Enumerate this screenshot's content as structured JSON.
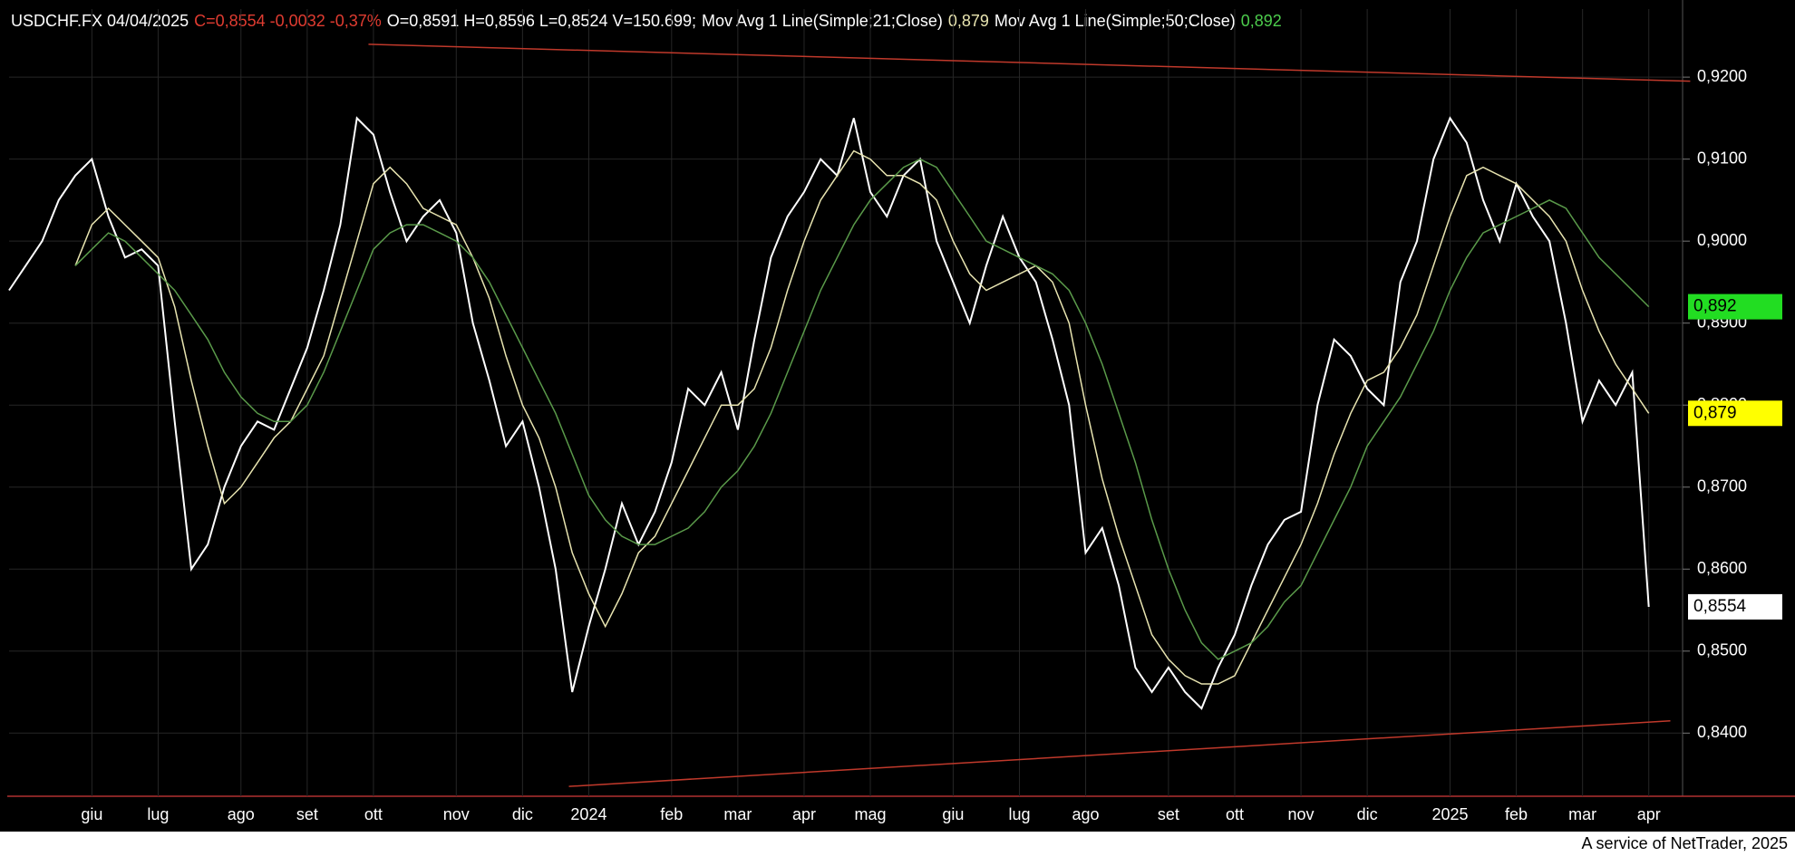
{
  "chart_data": {
    "type": "line",
    "quote": [
      {
        "text": "C=0,8554 -0,0032 -0,37%",
        "color": "#e03c31"
      },
      {
        "text": "O=0,8591 H=0,8596 L=0,8524 V=150.699;",
        "color": "#ffffff"
      }
    ],
    "footer": "A service of NetTrader, 2025",
    "categories": [
      null,
      null,
      null,
      null,
      null,
      "giu",
      null,
      null,
      null,
      "lug",
      null,
      null,
      null,
      null,
      "ago",
      null,
      null,
      null,
      "set",
      null,
      null,
      null,
      "ott",
      null,
      null,
      null,
      null,
      "nov",
      null,
      null,
      null,
      "dic",
      null,
      null,
      null,
      "2024",
      null,
      null,
      null,
      null,
      "feb",
      null,
      null,
      null,
      "mar",
      null,
      null,
      null,
      "apr",
      null,
      null,
      null,
      "mag",
      null,
      null,
      null,
      null,
      "giu",
      null,
      null,
      null,
      "lug",
      null,
      null,
      null,
      "ago",
      null,
      null,
      null,
      null,
      "set",
      null,
      null,
      null,
      "ott",
      null,
      null,
      null,
      "nov",
      null,
      null,
      null,
      "dic",
      null,
      null,
      null,
      null,
      "2025",
      null,
      null,
      null,
      "feb",
      null,
      null,
      null,
      "mar",
      null,
      null,
      null,
      "apr"
    ],
    "series": [
      {
        "name": "USDCHF.FX 04/04/2025",
        "color": "#ffffff",
        "label_color": "#ffffff",
        "last_label": "0,8554",
        "values": [
          0.894,
          0.897,
          0.9,
          0.905,
          0.908,
          0.91,
          0.903,
          0.898,
          0.899,
          0.897,
          0.878,
          0.86,
          0.863,
          0.87,
          0.875,
          0.878,
          0.877,
          0.882,
          0.887,
          0.894,
          0.902,
          0.915,
          0.913,
          0.906,
          0.9,
          0.903,
          0.905,
          0.901,
          0.89,
          0.883,
          0.875,
          0.878,
          0.87,
          0.86,
          0.845,
          0.853,
          0.86,
          0.868,
          0.863,
          0.867,
          0.873,
          0.882,
          0.88,
          0.884,
          0.877,
          0.888,
          0.898,
          0.903,
          0.906,
          0.91,
          0.908,
          0.915,
          0.906,
          0.903,
          0.908,
          0.91,
          0.9,
          0.895,
          0.89,
          0.897,
          0.903,
          0.898,
          0.895,
          0.888,
          0.88,
          0.862,
          0.865,
          0.858,
          0.848,
          0.845,
          0.848,
          0.845,
          0.843,
          0.848,
          0.852,
          0.858,
          0.863,
          0.866,
          0.867,
          0.88,
          0.888,
          0.886,
          0.882,
          0.88,
          0.895,
          0.9,
          0.91,
          0.915,
          0.912,
          0.905,
          0.9,
          0.907,
          0.903,
          0.9,
          0.89,
          0.878,
          0.883,
          0.88,
          0.884,
          0.8554
        ]
      },
      {
        "name": "Mov Avg 1 Line(Simple;21;Close)",
        "color": "#e8e4b0",
        "label_color": "#ffff00",
        "last_label": "0,879",
        "values": [
          null,
          null,
          null,
          null,
          0.897,
          0.902,
          0.904,
          0.902,
          0.9,
          0.898,
          0.892,
          0.883,
          0.875,
          0.868,
          0.87,
          0.873,
          0.876,
          0.878,
          0.882,
          0.886,
          0.893,
          0.9,
          0.907,
          0.909,
          0.907,
          0.904,
          0.903,
          0.902,
          0.898,
          0.893,
          0.886,
          0.88,
          0.876,
          0.87,
          0.862,
          0.857,
          0.853,
          0.857,
          0.862,
          0.864,
          0.868,
          0.872,
          0.876,
          0.88,
          0.88,
          0.882,
          0.887,
          0.894,
          0.9,
          0.905,
          0.908,
          0.911,
          0.91,
          0.908,
          0.908,
          0.907,
          0.905,
          0.9,
          0.896,
          0.894,
          0.895,
          0.896,
          0.897,
          0.895,
          0.89,
          0.88,
          0.871,
          0.864,
          0.858,
          0.852,
          0.849,
          0.847,
          0.846,
          0.846,
          0.847,
          0.851,
          0.855,
          0.859,
          0.863,
          0.868,
          0.874,
          0.879,
          0.883,
          0.884,
          0.887,
          0.891,
          0.897,
          0.903,
          0.908,
          0.909,
          0.908,
          0.907,
          0.905,
          0.903,
          0.9,
          0.894,
          0.889,
          0.885,
          0.882,
          0.879
        ]
      },
      {
        "name": "Mov Avg 1 Line(Simple;50;Close)",
        "color": "#5a9a4a",
        "label_color": "#22dd22",
        "last_label": "0,892",
        "values": [
          null,
          null,
          null,
          null,
          0.897,
          0.899,
          0.901,
          0.9,
          0.898,
          0.896,
          0.894,
          0.891,
          0.888,
          0.884,
          0.881,
          0.879,
          0.878,
          0.878,
          0.88,
          0.884,
          0.889,
          0.894,
          0.899,
          0.901,
          0.902,
          0.902,
          0.901,
          0.9,
          0.898,
          0.895,
          0.891,
          0.887,
          0.883,
          0.879,
          0.874,
          0.869,
          0.866,
          0.864,
          0.863,
          0.863,
          0.864,
          0.865,
          0.867,
          0.87,
          0.872,
          0.875,
          0.879,
          0.884,
          0.889,
          0.894,
          0.898,
          0.902,
          0.905,
          0.907,
          0.909,
          0.91,
          0.909,
          0.906,
          0.903,
          0.9,
          0.899,
          0.898,
          0.897,
          0.896,
          0.894,
          0.89,
          0.885,
          0.879,
          0.873,
          0.866,
          0.86,
          0.855,
          0.851,
          0.849,
          0.85,
          0.851,
          0.853,
          0.856,
          0.858,
          0.862,
          0.866,
          0.87,
          0.875,
          0.878,
          0.881,
          0.885,
          0.889,
          0.894,
          0.898,
          0.901,
          0.902,
          0.903,
          0.904,
          0.905,
          0.904,
          0.901,
          0.898,
          0.896,
          0.894,
          0.892
        ]
      }
    ],
    "trendlines": [
      {
        "color": "#c0392b",
        "x": [
          21.7,
          101.5
        ],
        "values": [
          0.924,
          0.9195
        ]
      },
      {
        "color": "#c0392b",
        "x": [
          33.8,
          100.3
        ],
        "values": [
          0.8335,
          0.8415
        ]
      }
    ],
    "ylim": [
      0.8323,
      0.9283
    ],
    "yticks": [
      {
        "value": 0.84,
        "label": "0,8400"
      },
      {
        "value": 0.85,
        "label": "0,8500"
      },
      {
        "value": 0.86,
        "label": "0,8600"
      },
      {
        "value": 0.87,
        "label": "0,8700"
      },
      {
        "value": 0.88,
        "label": "0,8800"
      },
      {
        "value": 0.89,
        "label": "0,8900"
      },
      {
        "value": 0.9,
        "label": "0,9000"
      },
      {
        "value": 0.91,
        "label": "0,9100"
      },
      {
        "value": 0.92,
        "label": "0,9200"
      }
    ],
    "grid": true
  }
}
